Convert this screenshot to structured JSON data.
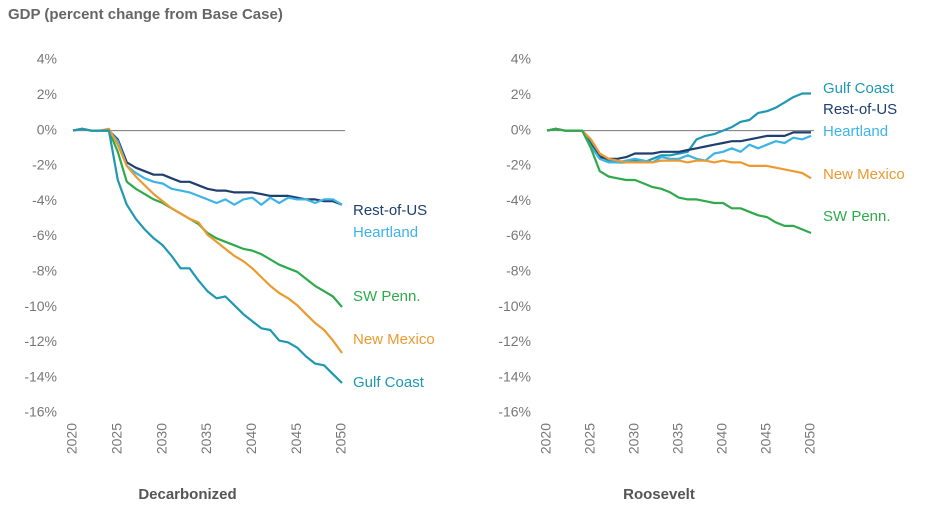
{
  "title": "GDP (percent change from Base Case)",
  "chart_data": [
    {
      "type": "line",
      "title": "Decarbonized",
      "x": [
        2020,
        2021,
        2022,
        2023,
        2024,
        2025,
        2026,
        2027,
        2028,
        2029,
        2030,
        2031,
        2032,
        2033,
        2034,
        2035,
        2036,
        2037,
        2038,
        2039,
        2040,
        2041,
        2042,
        2043,
        2044,
        2045,
        2046,
        2047,
        2048,
        2049,
        2050
      ],
      "xlim": [
        2020,
        2050
      ],
      "xticks": [
        2020,
        2025,
        2030,
        2035,
        2040,
        2045,
        2050
      ],
      "ylim": [
        -16,
        4
      ],
      "yticks": [
        {
          "value": 4,
          "label": "4%"
        },
        {
          "value": 2,
          "label": "2%"
        },
        {
          "value": 0,
          "label": "0%"
        },
        {
          "value": -2,
          "label": "-2%"
        },
        {
          "value": -4,
          "label": "-4%"
        },
        {
          "value": -6,
          "label": "-6%"
        },
        {
          "value": -8,
          "label": "-8%"
        },
        {
          "value": -10,
          "label": "-10%"
        },
        {
          "value": -12,
          "label": "-12%"
        },
        {
          "value": -14,
          "label": "-14%"
        },
        {
          "value": -16,
          "label": "-16%"
        }
      ],
      "series": [
        {
          "name": "Rest-of-US",
          "color": "#1f3f6e",
          "values": [
            0,
            0.1,
            0,
            0,
            0,
            -0.5,
            -1.8,
            -2.1,
            -2.3,
            -2.5,
            -2.5,
            -2.7,
            -2.9,
            -2.9,
            -3.1,
            -3.3,
            -3.4,
            -3.4,
            -3.5,
            -3.5,
            -3.5,
            -3.6,
            -3.7,
            -3.7,
            -3.7,
            -3.8,
            -3.9,
            -3.9,
            -4.0,
            -4.0,
            -4.2
          ]
        },
        {
          "name": "Heartland",
          "color": "#3cb4e7",
          "values": [
            0,
            0.1,
            0,
            0,
            0,
            -0.6,
            -2.0,
            -2.4,
            -2.7,
            -2.9,
            -3.0,
            -3.3,
            -3.4,
            -3.5,
            -3.7,
            -3.9,
            -4.1,
            -3.9,
            -4.2,
            -3.9,
            -3.8,
            -4.2,
            -3.8,
            -4.1,
            -3.8,
            -3.9,
            -3.9,
            -4.1,
            -3.9,
            -3.9,
            -4.2
          ]
        },
        {
          "name": "SW Penn.",
          "color": "#2eaa4c",
          "values": [
            0,
            0.1,
            0,
            0,
            0,
            -1.2,
            -2.9,
            -3.3,
            -3.6,
            -3.9,
            -4.1,
            -4.4,
            -4.7,
            -5.0,
            -5.3,
            -5.8,
            -6.1,
            -6.3,
            -6.5,
            -6.7,
            -6.8,
            -7.0,
            -7.3,
            -7.6,
            -7.8,
            -8.0,
            -8.4,
            -8.8,
            -9.1,
            -9.4,
            -10.0
          ]
        },
        {
          "name": "New Mexico",
          "color": "#ec9a30",
          "values": [
            0,
            0.1,
            0,
            0,
            0.1,
            -0.8,
            -2.0,
            -2.6,
            -3.1,
            -3.6,
            -4.0,
            -4.4,
            -4.7,
            -5.0,
            -5.2,
            -5.9,
            -6.3,
            -6.7,
            -7.1,
            -7.4,
            -7.8,
            -8.3,
            -8.8,
            -9.2,
            -9.5,
            -9.9,
            -10.4,
            -10.9,
            -11.3,
            -11.9,
            -12.6
          ]
        },
        {
          "name": "Gulf Coast",
          "color": "#1f98b2",
          "values": [
            0,
            0.1,
            0,
            0,
            0,
            -2.8,
            -4.2,
            -5.0,
            -5.6,
            -6.1,
            -6.5,
            -7.1,
            -7.8,
            -7.8,
            -8.5,
            -9.1,
            -9.5,
            -9.4,
            -9.9,
            -10.4,
            -10.8,
            -11.2,
            -11.3,
            -11.9,
            -12.0,
            -12.3,
            -12.8,
            -13.2,
            -13.3,
            -13.8,
            -14.3
          ]
        }
      ]
    },
    {
      "type": "line",
      "title": "Roosevelt",
      "x": [
        2020,
        2021,
        2022,
        2023,
        2024,
        2025,
        2026,
        2027,
        2028,
        2029,
        2030,
        2031,
        2032,
        2033,
        2034,
        2035,
        2036,
        2037,
        2038,
        2039,
        2040,
        2041,
        2042,
        2043,
        2044,
        2045,
        2046,
        2047,
        2048,
        2049,
        2050
      ],
      "xlim": [
        2020,
        2050
      ],
      "xticks": [
        2020,
        2025,
        2030,
        2035,
        2040,
        2045,
        2050
      ],
      "ylim": [
        -16,
        4
      ],
      "yticks": [
        {
          "value": 4,
          "label": "4%"
        },
        {
          "value": 2,
          "label": "2%"
        },
        {
          "value": 0,
          "label": "0%"
        },
        {
          "value": -2,
          "label": "-2%"
        },
        {
          "value": -4,
          "label": "-4%"
        },
        {
          "value": -6,
          "label": "-6%"
        },
        {
          "value": -8,
          "label": "-8%"
        },
        {
          "value": -10,
          "label": "-10%"
        },
        {
          "value": -12,
          "label": "-12%"
        },
        {
          "value": -14,
          "label": "-14%"
        },
        {
          "value": -16,
          "label": "-16%"
        }
      ],
      "series": [
        {
          "name": "Gulf Coast",
          "color": "#1f98b2",
          "values": [
            0,
            0.1,
            0,
            0,
            0,
            -0.6,
            -1.4,
            -1.7,
            -1.8,
            -1.8,
            -1.7,
            -1.8,
            -1.6,
            -1.4,
            -1.4,
            -1.3,
            -1.2,
            -0.5,
            -0.3,
            -0.2,
            0,
            0.2,
            0.5,
            0.6,
            1.0,
            1.1,
            1.3,
            1.6,
            1.9,
            2.1,
            2.1
          ]
        },
        {
          "name": "Rest-of-US",
          "color": "#1f3f6e",
          "values": [
            0,
            0.1,
            0,
            0,
            0,
            -0.8,
            -1.5,
            -1.6,
            -1.6,
            -1.5,
            -1.3,
            -1.3,
            -1.3,
            -1.2,
            -1.2,
            -1.2,
            -1.1,
            -1.0,
            -0.9,
            -0.8,
            -0.7,
            -0.6,
            -0.6,
            -0.5,
            -0.4,
            -0.3,
            -0.3,
            -0.3,
            -0.1,
            -0.1,
            -0.1
          ]
        },
        {
          "name": "Heartland",
          "color": "#3cb4e7",
          "values": [
            0,
            0.1,
            0,
            0,
            0,
            -0.9,
            -1.6,
            -1.8,
            -1.8,
            -1.7,
            -1.6,
            -1.7,
            -1.8,
            -1.5,
            -1.6,
            -1.6,
            -1.4,
            -1.6,
            -1.7,
            -1.3,
            -1.2,
            -1.0,
            -1.2,
            -0.8,
            -1.0,
            -0.8,
            -0.6,
            -0.7,
            -0.4,
            -0.5,
            -0.3
          ]
        },
        {
          "name": "New Mexico",
          "color": "#ec9a30",
          "values": [
            0,
            0.1,
            0,
            0,
            0,
            -0.5,
            -1.3,
            -1.6,
            -1.7,
            -1.8,
            -1.8,
            -1.8,
            -1.8,
            -1.7,
            -1.7,
            -1.7,
            -1.8,
            -1.7,
            -1.7,
            -1.8,
            -1.7,
            -1.8,
            -1.8,
            -2.0,
            -2.0,
            -2.0,
            -2.1,
            -2.2,
            -2.3,
            -2.4,
            -2.7
          ]
        },
        {
          "name": "SW Penn.",
          "color": "#2eaa4c",
          "values": [
            0,
            0.1,
            0,
            0,
            0,
            -1.0,
            -2.3,
            -2.6,
            -2.7,
            -2.8,
            -2.8,
            -3.0,
            -3.2,
            -3.3,
            -3.5,
            -3.8,
            -3.9,
            -3.9,
            -4.0,
            -4.1,
            -4.1,
            -4.4,
            -4.4,
            -4.6,
            -4.8,
            -4.9,
            -5.2,
            -5.4,
            -5.4,
            -5.6,
            -5.8
          ]
        }
      ]
    }
  ]
}
